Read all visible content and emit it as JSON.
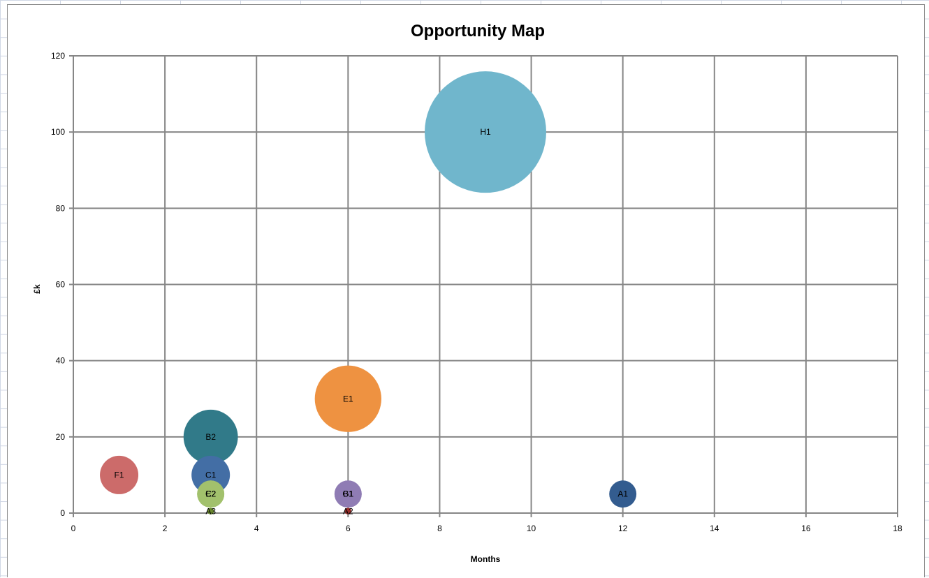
{
  "chart_data": {
    "type": "bubble",
    "title": "Opportunity Map",
    "xlabel": "Months",
    "ylabel": "£k",
    "xlim": [
      0,
      18
    ],
    "ylim": [
      0,
      120
    ],
    "x_ticks": [
      "0",
      "2",
      "4",
      "6",
      "8",
      "10",
      "12",
      "14",
      "16",
      "18"
    ],
    "y_ticks": [
      "0",
      "20",
      "40",
      "60",
      "80",
      "100",
      "120"
    ],
    "grid": true,
    "legend": "none",
    "points": [
      {
        "label": "H1",
        "x": 9,
        "y": 100,
        "size": 100,
        "color": "#70b6cc"
      },
      {
        "label": "E1",
        "x": 6,
        "y": 30,
        "size": 30,
        "color": "#ee9241"
      },
      {
        "label": "B2",
        "x": 3,
        "y": 20,
        "size": 20,
        "color": "#317a89"
      },
      {
        "label": "F1",
        "x": 1,
        "y": 10,
        "size": 10,
        "color": "#cc6b6a"
      },
      {
        "label": "C1",
        "x": 3,
        "y": 10,
        "size": 10,
        "color": "#436ea5"
      },
      {
        "label": "G1",
        "x": 6,
        "y": 5,
        "size": 5,
        "color": "#8f7cb4"
      },
      {
        "label": "B1",
        "x": 6,
        "y": 5,
        "size": 5,
        "color": "#8f7cb4"
      },
      {
        "label": "E2",
        "x": 3,
        "y": 5,
        "size": 5,
        "color": "#a2c16c"
      },
      {
        "label": "C2",
        "x": 3,
        "y": 5,
        "size": 5,
        "color": "#a2c16c"
      },
      {
        "label": "A1",
        "x": 12,
        "y": 5,
        "size": 5,
        "color": "#335c8f"
      },
      {
        "label": "A3",
        "x": 3,
        "y": 0.5,
        "size": 0.3,
        "color": "#6b8a2f"
      },
      {
        "label": "A2",
        "x": 6,
        "y": 0.5,
        "size": 0.3,
        "color": "#9b2f2b"
      }
    ]
  }
}
